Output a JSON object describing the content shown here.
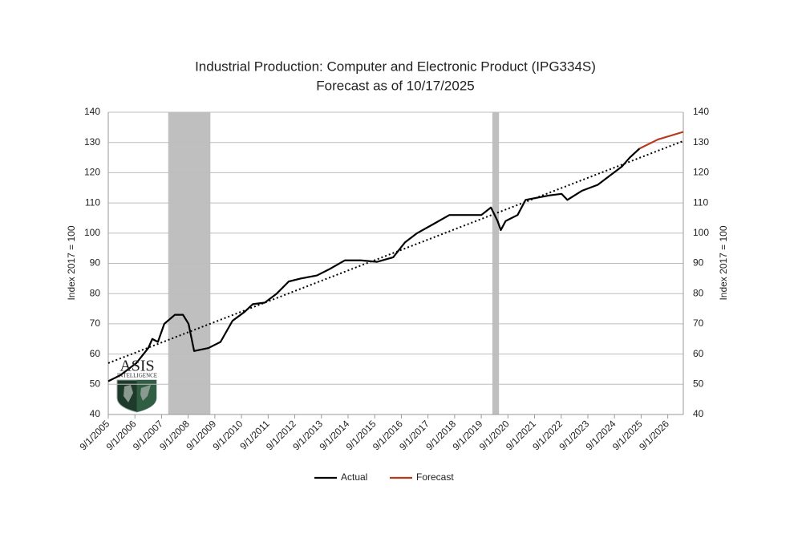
{
  "chart_data": {
    "type": "line",
    "title": "Industrial Production: Computer and Electronic Product (IPG334S)",
    "subtitle": "Forecast as of 10/17/2025",
    "ylabel": "Index 2017 = 100",
    "y2label": "Index 2017 = 100",
    "xlim": [
      2005.667,
      2027.25
    ],
    "xticks": [
      {
        "value": 2005.667,
        "label": "9/1/2005"
      },
      {
        "value": 2006.667,
        "label": "9/1/2006"
      },
      {
        "value": 2007.667,
        "label": "9/1/2007"
      },
      {
        "value": 2008.667,
        "label": "9/1/2008"
      },
      {
        "value": 2009.667,
        "label": "9/1/2009"
      },
      {
        "value": 2010.667,
        "label": "9/1/2010"
      },
      {
        "value": 2011.667,
        "label": "9/1/2011"
      },
      {
        "value": 2012.667,
        "label": "9/1/2012"
      },
      {
        "value": 2013.667,
        "label": "9/1/2013"
      },
      {
        "value": 2014.667,
        "label": "9/1/2014"
      },
      {
        "value": 2015.667,
        "label": "9/1/2015"
      },
      {
        "value": 2016.667,
        "label": "9/1/2016"
      },
      {
        "value": 2017.667,
        "label": "9/1/2017"
      },
      {
        "value": 2018.667,
        "label": "9/1/2018"
      },
      {
        "value": 2019.667,
        "label": "9/1/2019"
      },
      {
        "value": 2020.667,
        "label": "9/1/2020"
      },
      {
        "value": 2021.667,
        "label": "9/1/2021"
      },
      {
        "value": 2022.667,
        "label": "9/1/2022"
      },
      {
        "value": 2023.667,
        "label": "9/1/2023"
      },
      {
        "value": 2024.667,
        "label": "9/1/2024"
      },
      {
        "value": 2025.667,
        "label": "9/1/2025"
      },
      {
        "value": 2026.667,
        "label": "9/1/2026"
      }
    ],
    "ylim": [
      40,
      140
    ],
    "yticks": [
      40,
      50,
      60,
      70,
      80,
      90,
      100,
      110,
      120,
      130,
      140
    ],
    "y2lim": [
      40,
      140
    ],
    "y2ticks": [
      40,
      50,
      60,
      70,
      80,
      90,
      100,
      110,
      120,
      130,
      140
    ],
    "grid": true,
    "shaded_regions": [
      [
        2007.917,
        2009.5
      ],
      [
        2020.083,
        2020.333
      ]
    ],
    "shade_color": "#bfbfbf",
    "trendline": {
      "x": [
        2005.667,
        2027.25
      ],
      "values": [
        57,
        130.5
      ],
      "color": "#000000"
    },
    "legend": "bottom",
    "series": [
      {
        "name": "Actual",
        "color": "#000000",
        "x": [
          2005.667,
          2006.12,
          2006.72,
          2007.17,
          2007.32,
          2007.53,
          2007.77,
          2008.17,
          2008.47,
          2008.68,
          2008.89,
          2009.43,
          2009.88,
          2010.33,
          2010.79,
          2011.09,
          2011.54,
          2011.99,
          2012.44,
          2012.9,
          2013.5,
          2013.95,
          2014.55,
          2015.15,
          2015.76,
          2016.36,
          2016.81,
          2017.26,
          2017.87,
          2018.47,
          2019.07,
          2019.67,
          2020.03,
          2020.28,
          2020.4,
          2020.58,
          2021.03,
          2021.33,
          2021.63,
          2022.23,
          2022.68,
          2022.9,
          2023.44,
          2024.04,
          2024.49,
          2024.94,
          2025.24,
          2025.61
        ],
        "values": [
          51,
          53,
          57,
          62,
          65,
          64,
          70,
          73,
          73,
          70,
          61,
          62,
          64,
          71,
          74,
          76.5,
          77,
          80,
          84,
          85,
          86,
          88,
          91,
          91,
          90.5,
          92,
          97,
          100,
          103,
          106,
          106,
          106,
          108.5,
          104,
          101,
          104,
          106,
          111,
          111.5,
          112.5,
          113,
          111,
          114,
          116,
          119,
          122,
          125,
          128
        ]
      },
      {
        "name": "Forecast",
        "color": "#b83a1e",
        "x": [
          2025.61,
          2026.3,
          2027.25
        ],
        "values": [
          128,
          131,
          133.5
        ]
      }
    ],
    "logo": {
      "name": "ASIS",
      "tagline": "INTELLIGENCE"
    }
  }
}
